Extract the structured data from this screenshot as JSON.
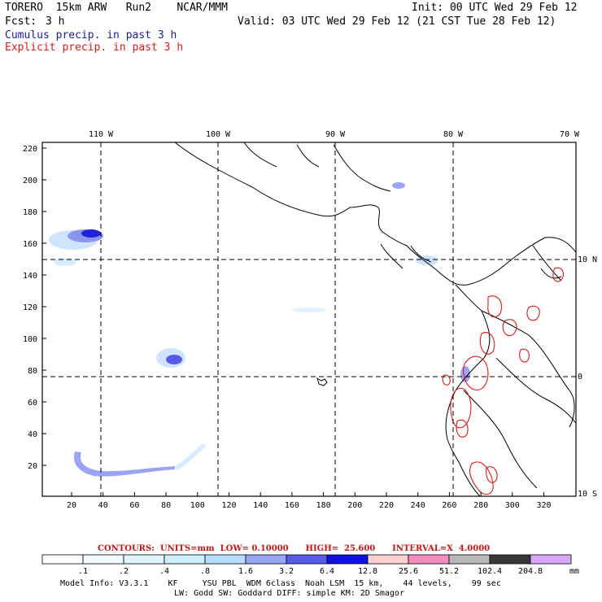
{
  "header": {
    "model": "TORERO  15km ARW   Run2    NCAR/MMM",
    "init": "Init: 00 UTC Wed 29 Feb 12",
    "fcst_label": "Fcst:",
    "fcst_value": "3 h",
    "valid": "Valid: 03 UTC Wed 29 Feb 12 (21 CST Tue 28 Feb 12)",
    "cumulus": "Cumulus precip. in past 3 h",
    "explicit": "Explicit precip. in past 3 h",
    "cumulus_color": "#1a1aa6",
    "explicit_color": "#e01818"
  },
  "map": {
    "lon_labels": [
      "110 W",
      "100 W",
      "90 W",
      "80 W",
      "70 W"
    ],
    "lat_labels": [
      "10 N",
      "0",
      "10 S"
    ],
    "y_ticks": [
      "220",
      "200",
      "180",
      "160",
      "140",
      "120",
      "100",
      "80",
      "60",
      "40",
      "20"
    ],
    "x_ticks": [
      "20",
      "40",
      "60",
      "80",
      "100",
      "120",
      "140",
      "160",
      "180",
      "200",
      "220",
      "240",
      "260",
      "280",
      "300",
      "320"
    ]
  },
  "contours": {
    "text": "CONTOURS:  UNITS=mm  LOW= 0.10000      HIGH=  25.600      INTERVAL=X  4.0000",
    "color": "#c81414"
  },
  "colorbar": {
    "labels": [
      ".1",
      ".2",
      ".4",
      ".8",
      "1.6",
      "3.2",
      "6.4",
      "12.8",
      "25.6",
      "51.2",
      "102.4",
      "204.8"
    ],
    "unit": "mm",
    "colors": [
      "#ffffff",
      "#f2fbff",
      "#e0f4ff",
      "#cfeeff",
      "#b8dcff",
      "#9aa6f5",
      "#5a5ae8",
      "#1010e0",
      "#ffd0d0",
      "#f48cc0",
      "#b8b8b8",
      "#383838",
      "#d8a8f8"
    ]
  },
  "footer": {
    "line1": "Model Info: V3.3.1    KF     YSU PBL  WDM 6class  Noah LSM  15 km,    44 levels,    99 sec",
    "line2": "LW: Godd SW: Goddard DIFF: simple KM: 2D Smagor"
  }
}
